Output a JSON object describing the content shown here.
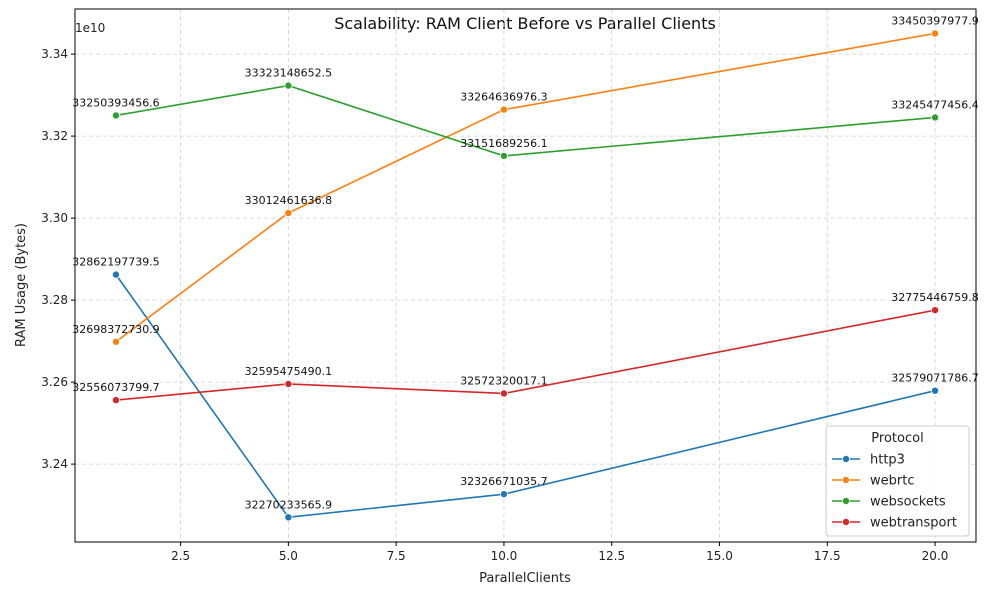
{
  "chart_data": {
    "type": "line",
    "title": "Scalability: RAM Client Before vs Parallel Clients",
    "xlabel": "ParallelClients",
    "ylabel": "RAM Usage (Bytes)",
    "y_offset_label": "1e10",
    "x": [
      1,
      5,
      10,
      20
    ],
    "xlim": [
      0.05,
      20.95
    ],
    "ylim": [
      32210000000,
      33510000000
    ],
    "xticks": [
      2.5,
      5.0,
      7.5,
      10.0,
      12.5,
      15.0,
      17.5,
      20.0
    ],
    "xtick_labels": [
      "2.5",
      "5.0",
      "7.5",
      "10.0",
      "12.5",
      "15.0",
      "17.5",
      "20.0"
    ],
    "yticks": [
      32400000000,
      32600000000,
      32800000000,
      33000000000,
      33200000000,
      33400000000
    ],
    "ytick_labels": [
      "3.24",
      "3.26",
      "3.28",
      "3.30",
      "3.32",
      "3.34"
    ],
    "grid": true,
    "legend": {
      "title": "Protocol",
      "placement": "lower-right"
    },
    "series": [
      {
        "name": "http3",
        "color": "#1f77b4",
        "values": [
          32862197739.5,
          32270233565.9,
          32326671035.7,
          32579071786.7
        ],
        "labels": [
          "32862197739.5",
          "32270233565.9",
          "32326671035.7",
          "32579071786.7"
        ]
      },
      {
        "name": "webrtc",
        "color": "#ff7f0e",
        "values": [
          32698372730.9,
          33012461636.8,
          33264636976.3,
          33450397977.9
        ],
        "labels": [
          "32698372730.9",
          "33012461636.8",
          "33264636976.3",
          "33450397977.9"
        ]
      },
      {
        "name": "websockets",
        "color": "#2ca02c",
        "values": [
          33250393456.6,
          33323148652.5,
          33151689256.1,
          33245477456.4
        ],
        "labels": [
          "33250393456.6",
          "33323148652.5",
          "33151689256.1",
          "33245477456.4"
        ]
      },
      {
        "name": "webtransport",
        "color": "#d62728",
        "values": [
          32556073799.7,
          32595475490.1,
          32572320017.1,
          32775446759.8
        ],
        "labels": [
          "32556073799.7",
          "32595475490.1",
          "32572320017.1",
          "32775446759.8"
        ]
      }
    ]
  }
}
